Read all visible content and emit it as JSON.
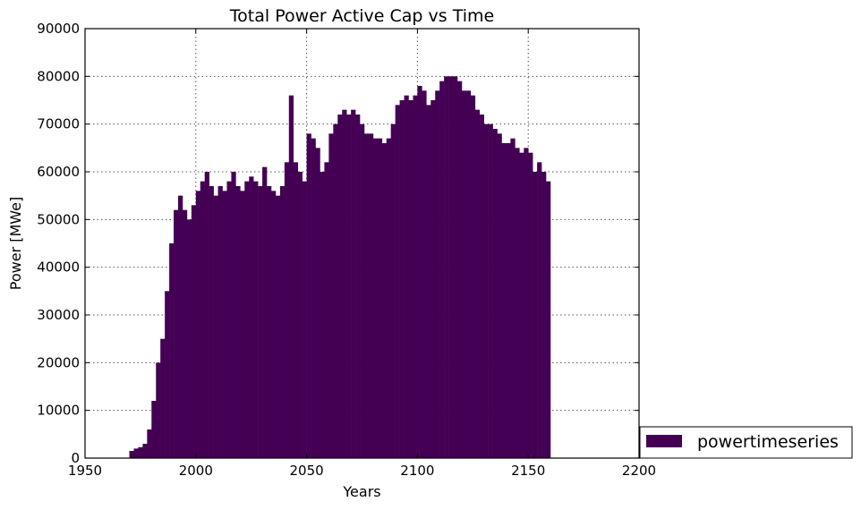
{
  "chart_data": {
    "type": "bar",
    "title": "Total Power Active Cap vs Time",
    "xlabel": "Years",
    "ylabel": "Power [MWe]",
    "xlim": [
      1950,
      2200
    ],
    "ylim": [
      0,
      90000
    ],
    "xticks": [
      1950,
      2000,
      2050,
      2100,
      2150,
      2200
    ],
    "yticks": [
      0,
      10000,
      20000,
      30000,
      40000,
      50000,
      60000,
      70000,
      80000,
      90000
    ],
    "grid": true,
    "legend": {
      "position": "lower-right-outside",
      "entries": [
        "powertimeseries"
      ]
    },
    "color": "#440154",
    "series": [
      {
        "name": "powertimeseries",
        "x": [
          1970,
          1972,
          1974,
          1976,
          1978,
          1980,
          1982,
          1984,
          1986,
          1988,
          1990,
          1992,
          1994,
          1996,
          1998,
          2000,
          2002,
          2004,
          2006,
          2008,
          2010,
          2012,
          2014,
          2016,
          2018,
          2020,
          2022,
          2024,
          2026,
          2028,
          2030,
          2032,
          2034,
          2036,
          2038,
          2040,
          2042,
          2044,
          2046,
          2048,
          2050,
          2052,
          2054,
          2056,
          2058,
          2060,
          2062,
          2064,
          2066,
          2068,
          2070,
          2072,
          2074,
          2076,
          2078,
          2080,
          2082,
          2084,
          2086,
          2088,
          2090,
          2092,
          2094,
          2096,
          2098,
          2100,
          2102,
          2104,
          2106,
          2108,
          2110,
          2112,
          2114,
          2116,
          2118,
          2120,
          2122,
          2124,
          2126,
          2128,
          2130,
          2132,
          2134,
          2136,
          2138,
          2140,
          2142,
          2144,
          2146,
          2148,
          2150,
          2152,
          2154,
          2156,
          2158
        ],
        "values": [
          1500,
          2000,
          2300,
          3000,
          6000,
          12000,
          20000,
          25000,
          35000,
          45000,
          52000,
          55000,
          52000,
          50000,
          53000,
          56000,
          58000,
          60000,
          57000,
          55000,
          57000,
          56000,
          58000,
          60000,
          57000,
          56000,
          58000,
          59000,
          58000,
          57000,
          61000,
          57000,
          56000,
          55000,
          57000,
          62000,
          76000,
          62000,
          60000,
          58000,
          68000,
          67000,
          65000,
          60000,
          62000,
          68000,
          70000,
          72000,
          73000,
          72000,
          73000,
          72000,
          70000,
          68000,
          68000,
          67000,
          67000,
          66000,
          67000,
          70000,
          74000,
          75000,
          76000,
          75000,
          76000,
          78000,
          77000,
          74000,
          75000,
          77000,
          79000,
          80000,
          80000,
          80000,
          79000,
          77000,
          77000,
          76000,
          73000,
          72000,
          70000,
          70000,
          69000,
          68000,
          66000,
          66000,
          67000,
          65000,
          64000,
          65000,
          64000,
          60000,
          62000,
          60000,
          58000
        ]
      }
    ]
  }
}
